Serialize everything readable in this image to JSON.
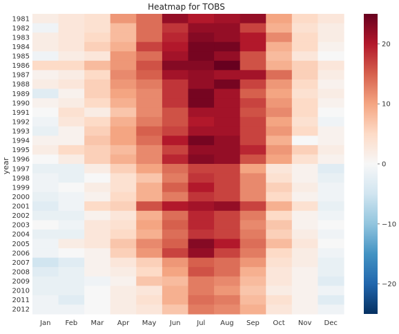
{
  "chart_data": {
    "type": "heatmap",
    "title": "Heatmap for TOBS",
    "xlabel": "",
    "ylabel": "year",
    "x_categories": [
      "Jan",
      "Feb",
      "Mar",
      "Apr",
      "May",
      "Jun",
      "Jul",
      "Aug",
      "Sep",
      "Oct",
      "Nov",
      "Dec"
    ],
    "y_categories": [
      "1981",
      "1982",
      "1983",
      "1984",
      "1985",
      "1986",
      "1987",
      "1988",
      "1989",
      "1990",
      "1991",
      "1992",
      "1993",
      "1994",
      "1995",
      "1996",
      "1997",
      "1998",
      "1999",
      "2000",
      "2001",
      "2002",
      "2003",
      "2004",
      "2005",
      "2006",
      "2007",
      "2008",
      "2009",
      "2010",
      "2011",
      "2012"
    ],
    "colorbar": {
      "vmin": -25,
      "vmax": 25,
      "ticks": [
        20,
        10,
        0,
        -10,
        -20
      ],
      "colormap": "RdBu_r"
    },
    "values": [
      [
        2,
        3,
        4,
        11,
        14,
        22,
        20,
        21,
        22,
        10,
        5,
        3
      ],
      [
        -1,
        3,
        4,
        8,
        14,
        18,
        22,
        22,
        17,
        9,
        4,
        2
      ],
      [
        2,
        3,
        5,
        8,
        14,
        19,
        23,
        22,
        20,
        12,
        5,
        2
      ],
      [
        2,
        3,
        6,
        9,
        17,
        20,
        24,
        24,
        20,
        9,
        5,
        1
      ],
      [
        -1,
        2,
        3,
        11,
        14,
        21,
        24,
        22,
        16,
        8,
        3,
        0
      ],
      [
        5,
        5,
        8,
        11,
        16,
        23,
        23,
        25,
        16,
        9,
        6,
        3
      ],
      [
        1,
        2,
        5,
        12,
        15,
        21,
        22,
        21,
        21,
        14,
        6,
        2
      ],
      [
        2,
        3,
        6,
        11,
        13,
        18,
        22,
        24,
        17,
        11,
        5,
        1
      ],
      [
        -3,
        1,
        6,
        10,
        12,
        18,
        24,
        21,
        15,
        10,
        4,
        2
      ],
      [
        1,
        2,
        5,
        9,
        12,
        18,
        24,
        21,
        17,
        11,
        5,
        1
      ],
      [
        0,
        4,
        2,
        7,
        12,
        16,
        21,
        21,
        16,
        12,
        5,
        0
      ],
      [
        -1,
        3,
        5,
        9,
        13,
        16,
        20,
        21,
        17,
        10,
        4,
        -1
      ],
      [
        -2,
        1,
        6,
        10,
        15,
        17,
        21,
        21,
        17,
        11,
        5,
        1
      ],
      [
        1,
        1,
        7,
        10,
        14,
        20,
        24,
        22,
        17,
        9,
        0,
        1
      ],
      [
        2,
        5,
        6,
        8,
        12,
        17,
        22,
        22,
        19,
        11,
        6,
        2
      ],
      [
        0,
        2,
        6,
        9,
        12,
        19,
        23,
        22,
        16,
        10,
        4,
        1
      ],
      [
        -2,
        -2,
        2,
        6,
        10,
        14,
        17,
        17,
        10,
        3,
        1,
        -3
      ],
      [
        -1,
        -2,
        0,
        4,
        7,
        13,
        18,
        17,
        12,
        4,
        1,
        -2
      ],
      [
        -1,
        0,
        2,
        4,
        9,
        15,
        20,
        17,
        12,
        6,
        2,
        -1
      ],
      [
        -2,
        -1,
        1,
        5,
        9,
        13,
        18,
        17,
        12,
        5,
        1,
        -1
      ],
      [
        -3,
        -1,
        5,
        6,
        16,
        20,
        21,
        22,
        17,
        9,
        4,
        -2
      ],
      [
        -2,
        -2,
        1,
        3,
        9,
        14,
        19,
        17,
        13,
        5,
        1,
        -1
      ],
      [
        0,
        -1,
        3,
        4,
        10,
        15,
        19,
        17,
        12,
        7,
        1,
        0
      ],
      [
        -2,
        -2,
        3,
        5,
        9,
        14,
        18,
        17,
        13,
        6,
        2,
        -1
      ],
      [
        -1,
        2,
        3,
        7,
        12,
        15,
        23,
        20,
        14,
        8,
        3,
        0
      ],
      [
        -1,
        0,
        1,
        6,
        11,
        17,
        22,
        17,
        13,
        5,
        2,
        -1
      ],
      [
        -5,
        -3,
        1,
        3,
        6,
        11,
        15,
        14,
        11,
        4,
        2,
        -2
      ],
      [
        -3,
        -2,
        1,
        2,
        5,
        10,
        16,
        14,
        9,
        3,
        1,
        -2
      ],
      [
        -2,
        -2,
        -1,
        1,
        7,
        8,
        13,
        12,
        8,
        3,
        1,
        -3
      ],
      [
        -2,
        -2,
        0,
        2,
        3,
        9,
        13,
        11,
        7,
        2,
        1,
        -1
      ],
      [
        -1,
        -3,
        0,
        2,
        4,
        9,
        14,
        13,
        8,
        4,
        1,
        -3
      ],
      [
        -1,
        -1,
        0,
        2,
        3,
        7,
        13,
        12,
        9,
        3,
        1,
        -1
      ]
    ]
  }
}
